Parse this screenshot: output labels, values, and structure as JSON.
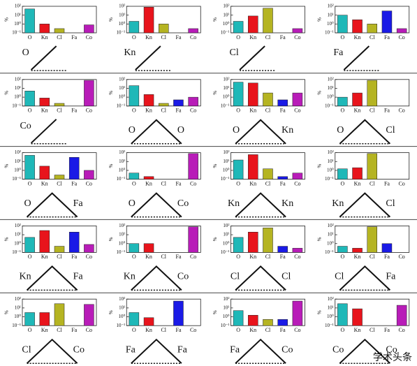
{
  "chart_data": [
    {
      "type": "bar",
      "log": true,
      "ylabel": "%",
      "categories": [
        "O",
        "Kn",
        "Cl",
        "Fa",
        "Co"
      ],
      "values": [
        50,
        1,
        0.3,
        null,
        0.8
      ],
      "colors": [
        "#1fb8b8",
        "#e8141c",
        "#b5b422",
        "#1a1ae6",
        "#b81cb8"
      ],
      "ylim": [
        0.1,
        100
      ],
      "yticks": [
        {
          "value": 0.1,
          "label": "10⁻¹"
        },
        {
          "value": 1,
          "label": "10⁰"
        },
        {
          "value": 10,
          "label": "10¹"
        },
        {
          "value": 100,
          "label": "10²"
        }
      ]
    },
    {
      "type": "bar",
      "log": true,
      "ylabel": "%",
      "categories": [
        "O",
        "Kn",
        "Cl",
        "Fa",
        "Co"
      ],
      "values": [
        2,
        80,
        1,
        null,
        0.3
      ],
      "colors": [
        "#1fb8b8",
        "#e8141c",
        "#b5b422",
        "#1a1ae6",
        "#b81cb8"
      ],
      "ylim": [
        0.1,
        100
      ],
      "yticks": [
        {
          "value": 0.1,
          "label": "10⁻¹"
        },
        {
          "value": 1,
          "label": "10⁰"
        },
        {
          "value": 10,
          "label": "10¹"
        },
        {
          "value": 100,
          "label": "10²"
        }
      ]
    },
    {
      "type": "bar",
      "log": true,
      "ylabel": "%",
      "categories": [
        "O",
        "Kn",
        "Cl",
        "Fa",
        "Co"
      ],
      "values": [
        2,
        8,
        60,
        null,
        0.3
      ],
      "colors": [
        "#1fb8b8",
        "#e8141c",
        "#b5b422",
        "#1a1ae6",
        "#b81cb8"
      ],
      "ylim": [
        0.1,
        100
      ],
      "yticks": [
        {
          "value": 0.1,
          "label": "10⁻¹"
        },
        {
          "value": 1,
          "label": "10⁰"
        },
        {
          "value": 10,
          "label": "10¹"
        },
        {
          "value": 100,
          "label": "10²"
        }
      ]
    },
    {
      "type": "bar",
      "log": true,
      "ylabel": "%",
      "categories": [
        "O",
        "Kn",
        "Cl",
        "Fa",
        "Co"
      ],
      "values": [
        10,
        3,
        1,
        30,
        0.3
      ],
      "colors": [
        "#1fb8b8",
        "#e8141c",
        "#b5b422",
        "#1a1ae6",
        "#b81cb8"
      ],
      "ylim": [
        0.1,
        100
      ],
      "yticks": [
        {
          "value": 0.1,
          "label": "10⁻¹"
        },
        {
          "value": 1,
          "label": "10⁰"
        },
        {
          "value": 10,
          "label": "10¹"
        },
        {
          "value": 100,
          "label": "10²"
        }
      ]
    },
    {
      "type": "bar",
      "log": true,
      "ylabel": "%",
      "categories": [
        "O",
        "Kn",
        "Cl",
        "Fa",
        "Co"
      ],
      "values": [
        5,
        0.8,
        0.2,
        null,
        80
      ],
      "colors": [
        "#1fb8b8",
        "#e8141c",
        "#b5b422",
        "#1a1ae6",
        "#b81cb8"
      ],
      "ylim": [
        0.1,
        100
      ],
      "yticks": [
        {
          "value": 0.1,
          "label": "10⁻¹"
        },
        {
          "value": 1,
          "label": "10⁰"
        },
        {
          "value": 10,
          "label": "10¹"
        },
        {
          "value": 100,
          "label": "10²"
        }
      ]
    },
    {
      "type": "bar",
      "log": true,
      "ylabel": "%",
      "categories": [
        "O",
        "Kn",
        "Cl",
        "Fa",
        "Co"
      ],
      "values": [
        20,
        2,
        0.2,
        0.5,
        1
      ],
      "colors": [
        "#1fb8b8",
        "#e8141c",
        "#b5b422",
        "#1a1ae6",
        "#b81cb8"
      ],
      "ylim": [
        0.1,
        100
      ],
      "yticks": [
        {
          "value": 0.1,
          "label": "10⁻¹"
        },
        {
          "value": 1,
          "label": "10⁰"
        },
        {
          "value": 10,
          "label": "10¹"
        },
        {
          "value": 100,
          "label": "10²"
        }
      ]
    },
    {
      "type": "bar",
      "log": true,
      "ylabel": "%",
      "categories": [
        "O",
        "Kn",
        "Cl",
        "Fa",
        "Co"
      ],
      "values": [
        50,
        40,
        3,
        0.5,
        3
      ],
      "colors": [
        "#1fb8b8",
        "#e8141c",
        "#b5b422",
        "#1a1ae6",
        "#b81cb8"
      ],
      "ylim": [
        0.1,
        100
      ],
      "yticks": [
        {
          "value": 0.1,
          "label": "10⁻¹"
        },
        {
          "value": 1,
          "label": "10⁰"
        },
        {
          "value": 10,
          "label": "10¹"
        },
        {
          "value": 100,
          "label": "10²"
        }
      ]
    },
    {
      "type": "bar",
      "log": true,
      "ylabel": "%",
      "categories": [
        "O",
        "Kn",
        "Cl",
        "Fa",
        "Co"
      ],
      "values": [
        1,
        3,
        80,
        null,
        null
      ],
      "colors": [
        "#1fb8b8",
        "#e8141c",
        "#b5b422",
        "#1a1ae6",
        "#b81cb8"
      ],
      "ylim": [
        0.1,
        100
      ],
      "yticks": [
        {
          "value": 0.1,
          "label": "10⁻¹"
        },
        {
          "value": 1,
          "label": "10⁰"
        },
        {
          "value": 10,
          "label": "10¹"
        },
        {
          "value": 100,
          "label": "10²"
        }
      ]
    },
    {
      "type": "bar",
      "log": true,
      "ylabel": "%",
      "categories": [
        "O",
        "Kn",
        "Cl",
        "Fa",
        "Co"
      ],
      "values": [
        50,
        3,
        0.3,
        30,
        1
      ],
      "colors": [
        "#1fb8b8",
        "#e8141c",
        "#b5b422",
        "#1a1ae6",
        "#b81cb8"
      ],
      "ylim": [
        0.1,
        100
      ],
      "yticks": [
        {
          "value": 0.1,
          "label": "10⁻¹"
        },
        {
          "value": 1,
          "label": "10⁰"
        },
        {
          "value": 10,
          "label": "10¹"
        },
        {
          "value": 100,
          "label": "10²"
        }
      ]
    },
    {
      "type": "bar",
      "log": true,
      "ylabel": "%",
      "categories": [
        "O",
        "Kn",
        "Cl",
        "Fa",
        "Co"
      ],
      "values": [
        0.5,
        0.2,
        null,
        null,
        80
      ],
      "colors": [
        "#1fb8b8",
        "#e8141c",
        "#b5b422",
        "#1a1ae6",
        "#b81cb8"
      ],
      "ylim": [
        0.1,
        100
      ],
      "yticks": [
        {
          "value": 0.1,
          "label": "10⁻¹"
        },
        {
          "value": 1,
          "label": "10⁰"
        },
        {
          "value": 10,
          "label": "10¹"
        },
        {
          "value": 100,
          "label": "10²"
        }
      ]
    },
    {
      "type": "bar",
      "log": true,
      "ylabel": "%",
      "categories": [
        "O",
        "Kn",
        "Cl",
        "Fa",
        "Co"
      ],
      "values": [
        15,
        60,
        1.5,
        0.2,
        0.5
      ],
      "colors": [
        "#1fb8b8",
        "#e8141c",
        "#b5b422",
        "#1a1ae6",
        "#b81cb8"
      ],
      "ylim": [
        0.1,
        100
      ],
      "yticks": [
        {
          "value": 0.1,
          "label": "10⁻¹"
        },
        {
          "value": 1,
          "label": "10⁰"
        },
        {
          "value": 10,
          "label": "10¹"
        },
        {
          "value": 100,
          "label": "10²"
        }
      ]
    },
    {
      "type": "bar",
      "log": true,
      "ylabel": "%",
      "categories": [
        "O",
        "Kn",
        "Cl",
        "Fa",
        "Co"
      ],
      "values": [
        1.5,
        2,
        80,
        null,
        null
      ],
      "colors": [
        "#1fb8b8",
        "#e8141c",
        "#b5b422",
        "#1a1ae6",
        "#b81cb8"
      ],
      "ylim": [
        0.1,
        100
      ],
      "yticks": [
        {
          "value": 0.1,
          "label": "10⁻¹"
        },
        {
          "value": 1,
          "label": "10⁰"
        },
        {
          "value": 10,
          "label": "10¹"
        },
        {
          "value": 100,
          "label": "10²"
        }
      ]
    },
    {
      "type": "bar",
      "log": true,
      "ylabel": "%",
      "categories": [
        "O",
        "Kn",
        "Cl",
        "Fa",
        "Co"
      ],
      "values": [
        5,
        30,
        0.5,
        20,
        0.8
      ],
      "colors": [
        "#1fb8b8",
        "#e8141c",
        "#b5b422",
        "#1a1ae6",
        "#b81cb8"
      ],
      "ylim": [
        0.1,
        100
      ],
      "yticks": [
        {
          "value": 0.1,
          "label": "10⁻¹"
        },
        {
          "value": 1,
          "label": "10⁰"
        },
        {
          "value": 10,
          "label": "10¹"
        },
        {
          "value": 100,
          "label": "10²"
        }
      ]
    },
    {
      "type": "bar",
      "log": true,
      "ylabel": "%",
      "categories": [
        "O",
        "Kn",
        "Cl",
        "Fa",
        "Co"
      ],
      "values": [
        1,
        1,
        null,
        null,
        80
      ],
      "colors": [
        "#1fb8b8",
        "#e8141c",
        "#b5b422",
        "#1a1ae6",
        "#b81cb8"
      ],
      "ylim": [
        0.1,
        100
      ],
      "yticks": [
        {
          "value": 0.1,
          "label": "10⁻¹"
        },
        {
          "value": 1,
          "label": "10⁰"
        },
        {
          "value": 10,
          "label": "10¹"
        },
        {
          "value": 100,
          "label": "10²"
        }
      ]
    },
    {
      "type": "bar",
      "log": true,
      "ylabel": "%",
      "categories": [
        "O",
        "Kn",
        "Cl",
        "Fa",
        "Co"
      ],
      "values": [
        5,
        20,
        60,
        0.5,
        0.3
      ],
      "colors": [
        "#1fb8b8",
        "#e8141c",
        "#b5b422",
        "#1a1ae6",
        "#b81cb8"
      ],
      "ylim": [
        0.1,
        100
      ],
      "yticks": [
        {
          "value": 0.1,
          "label": "10⁻¹"
        },
        {
          "value": 1,
          "label": "10⁰"
        },
        {
          "value": 10,
          "label": "10¹"
        },
        {
          "value": 100,
          "label": "10²"
        }
      ]
    },
    {
      "type": "bar",
      "log": true,
      "ylabel": "%",
      "categories": [
        "O",
        "Kn",
        "Cl",
        "Fa",
        "Co"
      ],
      "values": [
        0.5,
        0.3,
        80,
        1,
        null
      ],
      "colors": [
        "#1fb8b8",
        "#e8141c",
        "#b5b422",
        "#1a1ae6",
        "#b81cb8"
      ],
      "ylim": [
        0.1,
        100
      ],
      "yticks": [
        {
          "value": 0.1,
          "label": "10⁻¹"
        },
        {
          "value": 1,
          "label": "10⁰"
        },
        {
          "value": 10,
          "label": "10¹"
        },
        {
          "value": 100,
          "label": "10²"
        }
      ]
    },
    {
      "type": "bar",
      "log": true,
      "ylabel": "%",
      "categories": [
        "O",
        "Kn",
        "Cl",
        "Fa",
        "Co"
      ],
      "values": [
        3,
        3,
        30,
        null,
        25
      ],
      "colors": [
        "#1fb8b8",
        "#e8141c",
        "#b5b422",
        "#1a1ae6",
        "#b81cb8"
      ],
      "ylim": [
        0.1,
        100
      ],
      "yticks": [
        {
          "value": 0.1,
          "label": "10⁻¹"
        },
        {
          "value": 1,
          "label": "10⁰"
        },
        {
          "value": 10,
          "label": "10¹"
        },
        {
          "value": 100,
          "label": "10²"
        }
      ]
    },
    {
      "type": "bar",
      "log": true,
      "ylabel": "%",
      "categories": [
        "O",
        "Kn",
        "Cl",
        "Fa",
        "Co"
      ],
      "values": [
        3,
        0.8,
        null,
        60,
        null
      ],
      "colors": [
        "#1fb8b8",
        "#e8141c",
        "#b5b422",
        "#1a1ae6",
        "#b81cb8"
      ],
      "ylim": [
        0.1,
        100
      ],
      "yticks": [
        {
          "value": 0.1,
          "label": "10⁻¹"
        },
        {
          "value": 1,
          "label": "10⁰"
        },
        {
          "value": 10,
          "label": "10¹"
        },
        {
          "value": 100,
          "label": "10²"
        }
      ]
    },
    {
      "type": "bar",
      "log": true,
      "ylabel": "%",
      "categories": [
        "O",
        "Kn",
        "Cl",
        "Fa",
        "Co"
      ],
      "values": [
        5,
        1.5,
        0.5,
        0.5,
        60
      ],
      "colors": [
        "#1fb8b8",
        "#e8141c",
        "#b5b422",
        "#1a1ae6",
        "#b81cb8"
      ],
      "ylim": [
        0.1,
        100
      ],
      "yticks": [
        {
          "value": 0.1,
          "label": "10⁻¹"
        },
        {
          "value": 1,
          "label": "10⁰"
        },
        {
          "value": 10,
          "label": "10¹"
        },
        {
          "value": 100,
          "label": "10²"
        }
      ]
    },
    {
      "type": "bar",
      "log": true,
      "ylabel": "%",
      "categories": [
        "O",
        "Kn",
        "Cl",
        "Fa",
        "Co"
      ],
      "values": [
        30,
        8,
        null,
        null,
        20
      ],
      "colors": [
        "#1fb8b8",
        "#e8141c",
        "#b5b422",
        "#1a1ae6",
        "#b81cb8"
      ],
      "ylim": [
        0.1,
        100
      ],
      "yticks": [
        {
          "value": 0.1,
          "label": "10⁻¹"
        },
        {
          "value": 1,
          "label": "10⁰"
        },
        {
          "value": 10,
          "label": "10¹"
        },
        {
          "value": 100,
          "label": "10²"
        }
      ]
    }
  ],
  "motifs": [
    {
      "nodes": [
        "O"
      ]
    },
    {
      "nodes": [
        "Kn"
      ]
    },
    {
      "nodes": [
        "Cl"
      ]
    },
    {
      "nodes": [
        "Fa"
      ]
    },
    {
      "nodes": [
        "Co"
      ]
    },
    {
      "nodes": [
        "O",
        "O"
      ]
    },
    {
      "nodes": [
        "O",
        "Kn"
      ]
    },
    {
      "nodes": [
        "O",
        "Cl"
      ]
    },
    {
      "nodes": [
        "O",
        "Fa"
      ]
    },
    {
      "nodes": [
        "O",
        "Co"
      ]
    },
    {
      "nodes": [
        "Kn",
        "Kn"
      ]
    },
    {
      "nodes": [
        "Kn",
        "Cl"
      ]
    },
    {
      "nodes": [
        "Kn",
        "Fa"
      ]
    },
    {
      "nodes": [
        "Kn",
        "Co"
      ]
    },
    {
      "nodes": [
        "Cl",
        "Cl"
      ]
    },
    {
      "nodes": [
        "Cl",
        "Fa"
      ]
    },
    {
      "nodes": [
        "Cl",
        "Co"
      ]
    },
    {
      "nodes": [
        "Fa",
        "Fa"
      ]
    },
    {
      "nodes": [
        "Fa",
        "Co"
      ]
    },
    {
      "nodes": [
        "Co",
        "Co"
      ]
    }
  ],
  "watermark": "学术头条"
}
